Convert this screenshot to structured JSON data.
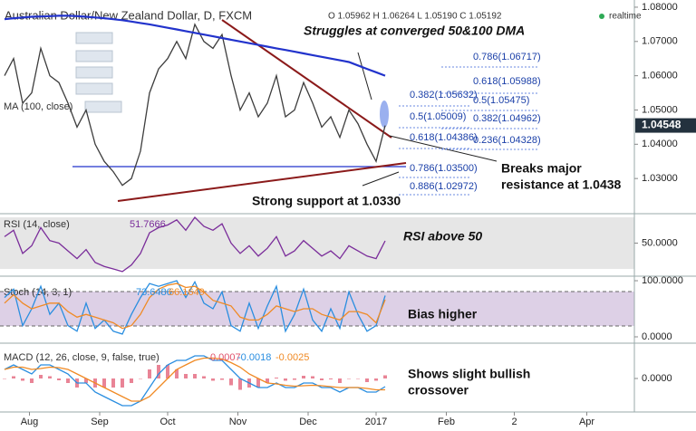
{
  "chart_data": [
    {
      "type": "line",
      "title": "Australian Dollar/New Zealand Dollar, D, FXCM",
      "ohlc": "O 1.05962 H 1.06264 L 1.05190 C 1.05192",
      "status": "realtime",
      "xlim": [
        0,
        280
      ],
      "xticks": [
        {
          "value": 13,
          "label": "Aug"
        },
        {
          "value": 44,
          "label": "Sep"
        },
        {
          "value": 74,
          "label": "Oct"
        },
        {
          "value": 105,
          "label": "Nov"
        },
        {
          "value": 136,
          "label": "Dec"
        },
        {
          "value": 166,
          "label": "2017"
        },
        {
          "value": 197,
          "label": "Feb"
        },
        {
          "value": 227,
          "label": "2"
        },
        {
          "value": 259,
          "label": "Apr"
        }
      ],
      "ylim": [
        1.02,
        1.0821
      ],
      "yticks": [
        {
          "value": 1.03,
          "label": "1.03000"
        },
        {
          "value": 1.04,
          "label": "1.04000"
        },
        {
          "value": 1.05,
          "label": "1.05000"
        },
        {
          "value": 1.06,
          "label": "1.06000"
        },
        {
          "value": 1.07,
          "label": "1.07000"
        },
        {
          "value": 1.08,
          "label": "1.08000"
        }
      ],
      "price_label": {
        "value": 1.04548,
        "label": "1.04548"
      },
      "x": [
        2,
        6,
        10,
        14,
        18,
        22,
        26,
        30,
        34,
        38,
        42,
        46,
        50,
        54,
        58,
        62,
        66,
        70,
        74,
        78,
        82,
        86,
        90,
        94,
        98,
        102,
        106,
        110,
        114,
        118,
        122,
        126,
        130,
        134,
        138,
        142,
        146,
        150,
        154,
        158,
        162,
        166,
        170
      ],
      "series": [
        {
          "color": "#3d3d3d",
          "values": [
            1.06,
            1.065,
            1.052,
            1.055,
            1.068,
            1.06,
            1.058,
            1.052,
            1.045,
            1.05,
            1.04,
            1.035,
            1.032,
            1.028,
            1.03,
            1.038,
            1.055,
            1.062,
            1.065,
            1.07,
            1.065,
            1.075,
            1.07,
            1.068,
            1.072,
            1.06,
            1.05,
            1.055,
            1.048,
            1.052,
            1.06,
            1.048,
            1.05,
            1.058,
            1.052,
            1.045,
            1.048,
            1.042,
            1.05,
            1.046,
            1.04,
            1.035,
            1.04548
          ]
        },
        {
          "name": "MA (100, close)",
          "color": "#2233cc",
          "values": [
            1.0765,
            1.0768,
            1.077,
            1.0772,
            1.0773,
            1.0774,
            1.0775,
            1.0775,
            1.0774,
            1.0772,
            1.077,
            1.0768,
            1.0765,
            1.0762,
            1.0758,
            1.0754,
            1.075,
            1.0745,
            1.074,
            1.0735,
            1.073,
            1.0725,
            1.072,
            1.0715,
            1.071,
            1.0705,
            1.07,
            1.0695,
            1.069,
            1.0685,
            1.068,
            1.0675,
            1.067,
            1.0665,
            1.066,
            1.0655,
            1.065,
            1.0645,
            1.064,
            1.063,
            1.062,
            1.061,
            1.06
          ]
        }
      ],
      "annotations": [
        "Struggles at converged 50&100 DMA",
        "Breaks major",
        "resistance at 1.0438",
        "Strong support at 1.0330"
      ],
      "fib_labels": [
        "0.786(1.06717)",
        "0.618(1.05988)",
        "0.382(1.05632)",
        "0.5(1.05475)",
        "0.5(1.05009)",
        "0.382(1.04962)",
        "0.618(1.04386)",
        "0.236(1.04328)",
        "0.786(1.03500)",
        "0.886(1.02972)"
      ]
    },
    {
      "type": "line",
      "title": "RSI (14, close)",
      "ylim": [
        24.4,
        71.4
      ],
      "yticks": [
        {
          "value": 50,
          "label": "50.0000"
        }
      ],
      "annotations": [
        "RSI above 50"
      ],
      "series": [
        {
          "color": "#7a2d9a",
          "values": [
            55,
            60,
            42,
            48,
            62,
            52,
            50,
            44,
            38,
            45,
            35,
            32,
            30,
            28,
            33,
            42,
            58,
            62,
            64,
            68,
            60,
            70,
            63,
            60,
            65,
            50,
            42,
            48,
            40,
            46,
            55,
            40,
            44,
            52,
            46,
            40,
            44,
            38,
            48,
            44,
            40,
            38,
            51.7666
          ]
        }
      ]
    },
    {
      "type": "line",
      "title": "Stoch (14, 3, 1)",
      "ylim": [
        -9.7,
        106.5
      ],
      "yticks": [
        {
          "value": 0,
          "label": "0.0000"
        },
        {
          "value": 100,
          "label": "100.0000"
        }
      ],
      "annotations": [
        "Bias higher"
      ],
      "series": [
        {
          "color": "#2a8ee0",
          "values": [
            70,
            85,
            20,
            50,
            90,
            40,
            60,
            20,
            10,
            60,
            15,
            30,
            10,
            5,
            40,
            70,
            95,
            90,
            95,
            100,
            70,
            98,
            60,
            50,
            80,
            20,
            10,
            60,
            15,
            55,
            90,
            10,
            40,
            85,
            30,
            10,
            50,
            15,
            80,
            40,
            10,
            20,
            73.6486
          ]
        },
        {
          "color": "#f08a24",
          "values": [
            60,
            75,
            60,
            50,
            55,
            60,
            60,
            45,
            35,
            40,
            35,
            30,
            25,
            15,
            20,
            40,
            70,
            85,
            92,
            95,
            88,
            90,
            80,
            65,
            60,
            55,
            35,
            30,
            30,
            40,
            55,
            50,
            45,
            50,
            50,
            40,
            35,
            30,
            45,
            45,
            40,
            25,
            66.1649
          ]
        }
      ]
    },
    {
      "type": "line",
      "title": "MACD (12, 26, close, 9, false, true)",
      "ylim": [
        -0.0074,
        0.0076
      ],
      "yticks": [
        {
          "value": 0,
          "label": "0.0000"
        }
      ],
      "annotations": [
        "Shows slight bullish",
        "crossover"
      ],
      "series": [
        {
          "style": "bar",
          "color": "#e0506a",
          "values": [
            0,
            0.0005,
            -0.0005,
            -0.001,
            0.0008,
            0.0005,
            -0.0004,
            -0.001,
            -0.002,
            -0.001,
            -0.002,
            -0.002,
            -0.002,
            -0.002,
            -0.001,
            0,
            0.002,
            0.003,
            0.003,
            0.002,
            0.001,
            0.001,
            0.0005,
            -0.0005,
            -0.0003,
            -0.0015,
            -0.0025,
            -0.002,
            -0.002,
            -0.001,
            0.0002,
            -0.0005,
            -0.0003,
            0.0006,
            0.0005,
            -0.0004,
            -0.0002,
            -0.001,
            0,
            0,
            -0.0008,
            -0.0005,
            0.0007
          ]
        },
        {
          "color": "#2a8ee0",
          "values": [
            0.002,
            0.003,
            0.002,
            0.001,
            0.003,
            0.003,
            0.002,
            0.001,
            -0.001,
            -0.001,
            -0.003,
            -0.004,
            -0.005,
            -0.006,
            -0.006,
            -0.005,
            -0.002,
            0.001,
            0.003,
            0.004,
            0.004,
            0.005,
            0.005,
            0.004,
            0.004,
            0.002,
            0,
            -0.001,
            -0.002,
            -0.002,
            -0.001,
            -0.002,
            -0.002,
            -0.001,
            -0.001,
            -0.002,
            -0.002,
            -0.003,
            -0.002,
            -0.002,
            -0.003,
            -0.003,
            -0.0018
          ]
        },
        {
          "color": "#f08a24",
          "values": [
            0.002,
            0.0025,
            0.0025,
            0.002,
            0.0022,
            0.0025,
            0.0024,
            0.002,
            0.001,
            0,
            -0.001,
            -0.002,
            -0.003,
            -0.004,
            -0.005,
            -0.005,
            -0.004,
            -0.002,
            0,
            0.002,
            0.003,
            0.004,
            0.0045,
            0.0045,
            0.0043,
            0.0035,
            0.0025,
            0.001,
            0,
            -0.001,
            -0.0012,
            -0.0015,
            -0.0017,
            -0.0016,
            -0.0015,
            -0.0016,
            -0.0018,
            -0.002,
            -0.002,
            -0.002,
            -0.0022,
            -0.0025,
            -0.0025
          ]
        }
      ]
    }
  ]
}
